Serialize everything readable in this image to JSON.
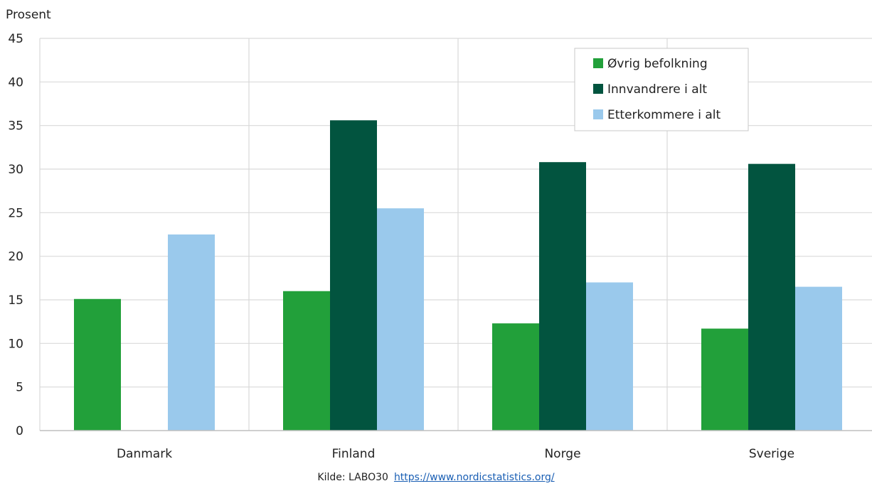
{
  "chart_data": {
    "type": "bar",
    "ylabel": "Prosent",
    "xlabel": "",
    "ylim": [
      0,
      45
    ],
    "yticks": [
      0,
      5,
      10,
      15,
      20,
      25,
      30,
      35,
      40,
      45
    ],
    "grid": true,
    "legend_position": "top-right",
    "categories": [
      "Danmark",
      "Finland",
      "Norge",
      "Sverige"
    ],
    "series": [
      {
        "name": "Øvrig befolkning",
        "color": "#22a03a",
        "values": [
          15.1,
          16.0,
          12.3,
          11.7
        ]
      },
      {
        "name": "Innvandrere i alt",
        "color": "#02543f",
        "values": [
          null,
          35.6,
          30.8,
          30.6
        ]
      },
      {
        "name": "Etterkommere i alt",
        "color": "#9ac9ec",
        "values": [
          22.5,
          25.5,
          17.0,
          16.5
        ]
      }
    ]
  },
  "source": {
    "label": "Kilde: LABO30",
    "link_text": "https://www.nordicstatistics.org/"
  }
}
